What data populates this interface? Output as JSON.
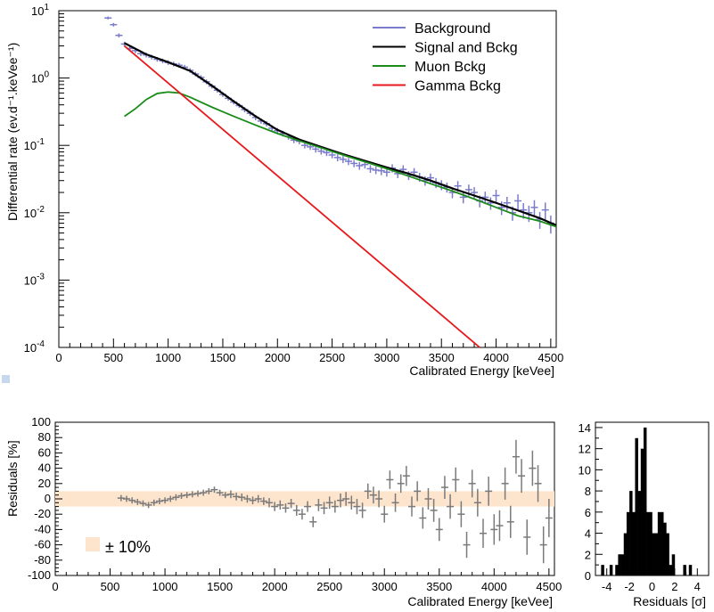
{
  "chart_data": [
    {
      "type": "line",
      "id": "spectrum",
      "xlabel": "Calibrated Energy [keVee]",
      "ylabel": "Differential rate (ev.d⁻¹.keVee⁻¹)",
      "xlim": [
        0,
        4550
      ],
      "ylim": [
        0.0001,
        10
      ],
      "yscale": "log",
      "xticks": [
        0,
        500,
        1000,
        1500,
        2000,
        2500,
        3000,
        3500,
        4000,
        4500
      ],
      "yticks": [
        {
          "value": 0.0001,
          "base": "10",
          "exp": "-4"
        },
        {
          "value": 0.001,
          "base": "10",
          "exp": "-3"
        },
        {
          "value": 0.01,
          "base": "10",
          "exp": "-2"
        },
        {
          "value": 0.1,
          "base": "10",
          "exp": "-1"
        },
        {
          "value": 1,
          "base": "10",
          "exp": "0"
        },
        {
          "value": 10,
          "base": "10",
          "exp": "1"
        }
      ],
      "legend_position": "top-right",
      "series": [
        {
          "name": "Background",
          "type": "errorbar",
          "color": "#7b7bcc",
          "x": [
            450,
            500,
            550,
            600,
            650,
            700,
            750,
            800,
            850,
            900,
            950,
            1000,
            1050,
            1100,
            1150,
            1200,
            1250,
            1300,
            1350,
            1400,
            1450,
            1500,
            1550,
            1600,
            1650,
            1700,
            1750,
            1800,
            1850,
            1900,
            1950,
            2000,
            2050,
            2100,
            2150,
            2200,
            2250,
            2300,
            2350,
            2400,
            2450,
            2500,
            2550,
            2600,
            2650,
            2700,
            2750,
            2800,
            2850,
            2900,
            2950,
            3000,
            3050,
            3100,
            3150,
            3200,
            3250,
            3300,
            3350,
            3400,
            3450,
            3500,
            3550,
            3600,
            3650,
            3700,
            3750,
            3800,
            3850,
            3900,
            3950,
            4000,
            4050,
            4100,
            4150,
            4200,
            4250,
            4300,
            4350,
            4400,
            4450,
            4500
          ],
          "y": [
            7.8,
            6.2,
            4.3,
            3.2,
            2.75,
            2.55,
            2.3,
            2.2,
            2.05,
            1.9,
            1.8,
            1.7,
            1.62,
            1.55,
            1.45,
            1.3,
            1.15,
            1.02,
            0.88,
            0.76,
            0.66,
            0.57,
            0.5,
            0.44,
            0.39,
            0.34,
            0.3,
            0.26,
            0.23,
            0.21,
            0.18,
            0.165,
            0.15,
            0.135,
            0.12,
            0.115,
            0.1,
            0.095,
            0.088,
            0.082,
            0.078,
            0.072,
            0.066,
            0.062,
            0.058,
            0.054,
            0.05,
            0.052,
            0.045,
            0.043,
            0.042,
            0.04,
            0.046,
            0.038,
            0.044,
            0.036,
            0.04,
            0.034,
            0.03,
            0.033,
            0.028,
            0.026,
            0.024,
            0.02,
            0.025,
            0.017,
            0.022,
            0.02,
            0.015,
            0.017,
            0.014,
            0.018,
            0.012,
            0.014,
            0.01,
            0.015,
            0.011,
            0.01,
            0.012,
            0.008,
            0.011,
            0.007
          ],
          "err": [
            0.05,
            0.06,
            0.07,
            0.08,
            0.08,
            0.08,
            0.08,
            0.08,
            0.08,
            0.08,
            0.08,
            0.08,
            0.08,
            0.08,
            0.08,
            0.08,
            0.08,
            0.08,
            0.08,
            0.08,
            0.08,
            0.08,
            0.08,
            0.08,
            0.08,
            0.09,
            0.09,
            0.09,
            0.09,
            0.09,
            0.1,
            0.1,
            0.1,
            0.1,
            0.1,
            0.1,
            0.1,
            0.1,
            0.11,
            0.11,
            0.11,
            0.11,
            0.12,
            0.12,
            0.12,
            0.12,
            0.13,
            0.13,
            0.13,
            0.13,
            0.14,
            0.14,
            0.14,
            0.14,
            0.15,
            0.15,
            0.15,
            0.15,
            0.16,
            0.16,
            0.17,
            0.17,
            0.17,
            0.18,
            0.18,
            0.19,
            0.19,
            0.2,
            0.2,
            0.21,
            0.21,
            0.22,
            0.23,
            0.23,
            0.24,
            0.25,
            0.26,
            0.27,
            0.28,
            0.28,
            0.29,
            0.3
          ]
        },
        {
          "name": "Signal and Bckg",
          "type": "line",
          "color": "#000000",
          "x": [
            600,
            800,
            1000,
            1200,
            1400,
            1600,
            1800,
            2000,
            2200,
            2400,
            2600,
            2800,
            3000,
            3200,
            3400,
            3600,
            3800,
            4000,
            4200,
            4400,
            4550
          ],
          "y": [
            3.3,
            2.25,
            1.72,
            1.28,
            0.77,
            0.45,
            0.27,
            0.17,
            0.122,
            0.095,
            0.074,
            0.059,
            0.047,
            0.038,
            0.03,
            0.023,
            0.018,
            0.014,
            0.0108,
            0.0083,
            0.0065
          ]
        },
        {
          "name": "Muon Bckg",
          "type": "line",
          "color": "#1a8c1a",
          "x": [
            600,
            700,
            800,
            900,
            1000,
            1100,
            1200,
            1400,
            1600,
            1800,
            2000,
            2200,
            2400,
            2600,
            2800,
            3000,
            3200,
            3400,
            3600,
            3800,
            4000,
            4200,
            4400,
            4550
          ],
          "y": [
            0.27,
            0.35,
            0.48,
            0.59,
            0.62,
            0.6,
            0.52,
            0.37,
            0.27,
            0.2,
            0.15,
            0.117,
            0.092,
            0.072,
            0.057,
            0.045,
            0.035,
            0.027,
            0.021,
            0.016,
            0.012,
            0.009,
            0.0075,
            0.0062
          ]
        },
        {
          "name": "Gamma Bckg",
          "type": "line",
          "color": "#e8191c",
          "x": [
            600,
            3850
          ],
          "y": [
            3.0,
            0.0001
          ]
        }
      ]
    },
    {
      "type": "scatter",
      "id": "residuals",
      "xlabel": "Calibrated Energy [keVee]",
      "ylabel": "Residuals [%]",
      "xlim": [
        0,
        4550
      ],
      "ylim": [
        -100,
        100
      ],
      "xticks": [
        0,
        500,
        1000,
        1500,
        2000,
        2500,
        3000,
        3500,
        4000,
        4500
      ],
      "yticks": [
        -100,
        -80,
        -60,
        -40,
        -20,
        0,
        20,
        40,
        60,
        80,
        100
      ],
      "band": {
        "label": "± 10%",
        "low": -10,
        "high": 10,
        "color": "#fde4cc"
      },
      "series": [
        {
          "name": "",
          "color": "#7a7a7a",
          "x": [
            600,
            650,
            700,
            750,
            800,
            850,
            900,
            950,
            1000,
            1050,
            1100,
            1150,
            1200,
            1250,
            1300,
            1350,
            1400,
            1450,
            1500,
            1550,
            1600,
            1650,
            1700,
            1750,
            1800,
            1850,
            1900,
            1950,
            2000,
            2050,
            2100,
            2150,
            2200,
            2250,
            2300,
            2350,
            2400,
            2450,
            2500,
            2550,
            2600,
            2650,
            2700,
            2750,
            2800,
            2850,
            2900,
            2950,
            3000,
            3050,
            3100,
            3150,
            3200,
            3250,
            3300,
            3350,
            3400,
            3450,
            3500,
            3550,
            3600,
            3650,
            3700,
            3750,
            3800,
            3850,
            3900,
            3950,
            4000,
            4050,
            4100,
            4150,
            4200,
            4250,
            4300,
            4350,
            4400,
            4450,
            4500
          ],
          "y": [
            1,
            0,
            -2,
            -4,
            -6,
            -8,
            -5,
            -3,
            -2,
            0,
            2,
            4,
            5,
            6,
            7,
            8,
            10,
            12,
            8,
            5,
            6,
            3,
            2,
            0,
            -2,
            0,
            -3,
            -5,
            -10,
            -8,
            -12,
            -6,
            -15,
            -20,
            -10,
            -30,
            -8,
            -12,
            -5,
            -10,
            -2,
            0,
            -5,
            -10,
            -15,
            10,
            5,
            0,
            -20,
            25,
            -5,
            20,
            30,
            -10,
            10,
            -25,
            0,
            -15,
            -40,
            15,
            -10,
            25,
            -20,
            -60,
            20,
            -5,
            -45,
            10,
            -40,
            -35,
            20,
            -30,
            55,
            30,
            -50,
            40,
            20,
            -60,
            -25
          ],
          "err": [
            4,
            4,
            4,
            4,
            4,
            4,
            4,
            4,
            4,
            4,
            4,
            4,
            4,
            4,
            4,
            4,
            4,
            4,
            4,
            4,
            5,
            5,
            5,
            5,
            5,
            5,
            5,
            6,
            6,
            6,
            6,
            6,
            7,
            7,
            7,
            7,
            8,
            8,
            8,
            8,
            9,
            9,
            9,
            10,
            10,
            10,
            11,
            11,
            11,
            12,
            12,
            12,
            13,
            13,
            13,
            14,
            14,
            15,
            15,
            15,
            16,
            16,
            17,
            17,
            18,
            18,
            19,
            19,
            20,
            20,
            21,
            21,
            22,
            22,
            23,
            23,
            24,
            24,
            25
          ]
        }
      ]
    },
    {
      "type": "bar",
      "id": "residual-histogram",
      "xlabel": "Residuals [σ]",
      "ylabel": "",
      "xlim": [
        -5,
        5
      ],
      "ylim": [
        0,
        14.5
      ],
      "xticks": [
        -4,
        -2,
        0,
        2,
        4
      ],
      "yticks": [
        0,
        2,
        4,
        6,
        8,
        10,
        12,
        14
      ],
      "bin_width": 0.25,
      "bin_start": -4.5,
      "values": [
        1,
        0,
        0,
        1,
        0,
        1,
        2,
        2,
        4,
        6,
        8,
        6,
        13,
        8,
        12,
        14,
        6,
        6,
        4,
        4,
        6,
        6,
        5,
        4,
        1,
        2,
        0,
        0,
        0,
        1,
        0,
        1
      ],
      "color": "#000000"
    }
  ]
}
